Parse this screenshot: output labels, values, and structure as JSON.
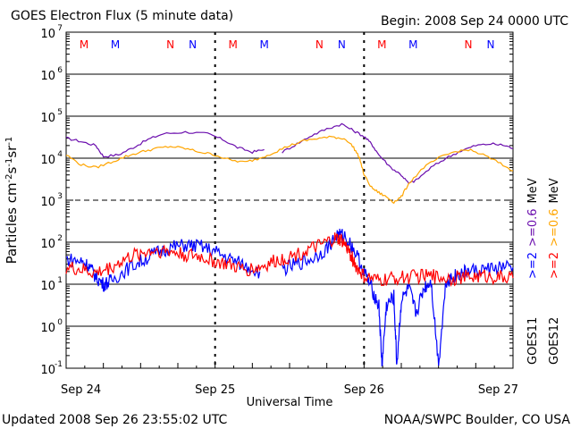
{
  "header": {
    "title": "GOES Electron Flux (5 minute data)",
    "begin": "Begin: 2008 Sep 24 0000 UTC"
  },
  "footer": {
    "updated": "Updated 2008 Sep 26 23:55:02 UTC",
    "credit": "NOAA/SWPC Boulder, CO USA"
  },
  "colors": {
    "goes11_06": "#6a0dad",
    "goes12_06": "#ffa500",
    "goes11_2": "#0000ff",
    "goes12_2": "#ff0000",
    "marker_m": "#ff0000",
    "marker_n": "#0000ff"
  },
  "chart_data": {
    "type": "line",
    "title": "GOES Electron Flux (5 minute data)",
    "xlabel": "Universal Time",
    "ylabel": "Particles cm^-2 s^-1 sr^-1",
    "y_scale": "log",
    "ylim": [
      0.1,
      10000000
    ],
    "xlim_days": [
      0,
      3
    ],
    "x_ticks": [
      "Sep 24",
      "Sep 25",
      "Sep 26",
      "Sep 27"
    ],
    "y_ticks": [
      {
        "base": "10",
        "exp": "-1"
      },
      {
        "base": "10",
        "exp": "0"
      },
      {
        "base": "10",
        "exp": "1"
      },
      {
        "base": "10",
        "exp": "2"
      },
      {
        "base": "10",
        "exp": "3"
      },
      {
        "base": "10",
        "exp": "4"
      },
      {
        "base": "10",
        "exp": "5"
      },
      {
        "base": "10",
        "exp": "6"
      },
      {
        "base": "10",
        "exp": "7"
      }
    ],
    "threshold_line": 1000,
    "right_labels": [
      {
        "text": ">=2",
        "color": "#0000ff"
      },
      {
        "text": ">=0.6",
        "color": "#6a0dad"
      },
      {
        "text": "MeV",
        "color": "#000000"
      },
      {
        "text": ">=2",
        "color": "#ff0000"
      },
      {
        "text": ">=0.6",
        "color": "#ffa500"
      },
      {
        "text": "MeV",
        "color": "#000000"
      },
      {
        "text": "GOES11",
        "color": "#000000"
      },
      {
        "text": "GOES12",
        "color": "#000000"
      }
    ],
    "markers": [
      {
        "label": "M",
        "color": "#ff0000",
        "x": 0.12
      },
      {
        "label": "M",
        "color": "#0000ff",
        "x": 0.33
      },
      {
        "label": "N",
        "color": "#ff0000",
        "x": 0.7
      },
      {
        "label": "N",
        "color": "#0000ff",
        "x": 0.85
      },
      {
        "label": "M",
        "color": "#ff0000",
        "x": 1.12
      },
      {
        "label": "M",
        "color": "#0000ff",
        "x": 1.33
      },
      {
        "label": "N",
        "color": "#ff0000",
        "x": 1.7
      },
      {
        "label": "N",
        "color": "#0000ff",
        "x": 1.85
      },
      {
        "label": "M",
        "color": "#ff0000",
        "x": 2.12
      },
      {
        "label": "M",
        "color": "#0000ff",
        "x": 2.33
      },
      {
        "label": "N",
        "color": "#ff0000",
        "x": 2.7
      },
      {
        "label": "N",
        "color": "#0000ff",
        "x": 2.85
      }
    ],
    "series": [
      {
        "color": "#6a0dad",
        "points": [
          [
            0,
            30000
          ],
          [
            0.1,
            25000
          ],
          [
            0.2,
            20000
          ],
          [
            0.25,
            11000
          ],
          [
            0.35,
            12000
          ],
          [
            0.45,
            18000
          ],
          [
            0.55,
            28000
          ],
          [
            0.65,
            38000
          ],
          [
            0.8,
            42000
          ],
          [
            0.95,
            38000
          ],
          [
            1.05,
            28000
          ],
          [
            1.15,
            18000
          ],
          [
            1.25,
            14000
          ],
          [
            1.33,
            16000
          ]
        ]
      },
      {
        "color": "#6a0dad",
        "points": [
          [
            1.45,
            14000
          ],
          [
            1.55,
            22000
          ],
          [
            1.65,
            35000
          ],
          [
            1.75,
            50000
          ],
          [
            1.85,
            65000
          ],
          [
            1.93,
            45000
          ],
          [
            2.0,
            33000
          ],
          [
            2.05,
            22000
          ],
          [
            2.1,
            12000
          ],
          [
            2.18,
            6000
          ],
          [
            2.25,
            4000
          ],
          [
            2.3,
            2500
          ],
          [
            2.35,
            3000
          ],
          [
            2.45,
            6000
          ],
          [
            2.55,
            10000
          ],
          [
            2.65,
            15000
          ],
          [
            2.75,
            20000
          ],
          [
            2.85,
            22000
          ],
          [
            2.95,
            20000
          ],
          [
            3.0,
            17000
          ]
        ]
      },
      {
        "color": "#ffa500",
        "points": [
          [
            0,
            12000
          ],
          [
            0.1,
            7000
          ],
          [
            0.2,
            6000
          ],
          [
            0.3,
            8000
          ],
          [
            0.4,
            11000
          ],
          [
            0.5,
            14000
          ],
          [
            0.6,
            17000
          ],
          [
            0.7,
            19000
          ],
          [
            0.8,
            17000
          ],
          [
            0.9,
            14000
          ],
          [
            1.0,
            12000
          ],
          [
            1.1,
            9000
          ],
          [
            1.2,
            8000
          ],
          [
            1.3,
            10000
          ],
          [
            1.4,
            14000
          ],
          [
            1.5,
            20000
          ],
          [
            1.6,
            26000
          ],
          [
            1.7,
            30000
          ],
          [
            1.8,
            32000
          ],
          [
            1.88,
            28000
          ],
          [
            1.93,
            18000
          ],
          [
            1.97,
            10000
          ],
          [
            2.0,
            4000
          ],
          [
            2.05,
            2000
          ],
          [
            2.1,
            1500
          ],
          [
            2.15,
            1200
          ],
          [
            2.2,
            900
          ],
          [
            2.25,
            1200
          ],
          [
            2.3,
            2500
          ],
          [
            2.4,
            6000
          ],
          [
            2.5,
            10000
          ],
          [
            2.6,
            14000
          ],
          [
            2.7,
            16000
          ],
          [
            2.8,
            12000
          ],
          [
            2.9,
            8000
          ],
          [
            3.0,
            5000
          ]
        ]
      },
      {
        "color": "#0000ff",
        "points": [
          [
            0,
            40
          ],
          [
            0.1,
            35
          ],
          [
            0.15,
            28
          ],
          [
            0.2,
            15
          ],
          [
            0.25,
            10
          ],
          [
            0.3,
            12
          ],
          [
            0.4,
            22
          ],
          [
            0.5,
            35
          ],
          [
            0.6,
            55
          ],
          [
            0.7,
            75
          ],
          [
            0.8,
            85
          ],
          [
            0.9,
            80
          ],
          [
            1.0,
            60
          ],
          [
            1.1,
            40
          ],
          [
            1.2,
            28
          ],
          [
            1.3,
            20
          ]
        ]
      },
      {
        "color": "#0000ff",
        "points": [
          [
            1.45,
            22
          ],
          [
            1.55,
            30
          ],
          [
            1.65,
            40
          ],
          [
            1.75,
            70
          ],
          [
            1.82,
            150
          ],
          [
            1.87,
            140
          ],
          [
            1.93,
            70
          ],
          [
            2.0,
            20
          ],
          [
            2.05,
            8
          ],
          [
            2.1,
            3
          ],
          [
            2.12,
            0.12
          ],
          [
            2.15,
            3
          ],
          [
            2.2,
            5
          ],
          [
            2.22,
            0.12
          ],
          [
            2.25,
            4
          ],
          [
            2.3,
            8
          ],
          [
            2.35,
            2
          ],
          [
            2.4,
            8
          ],
          [
            2.45,
            12
          ],
          [
            2.5,
            0.12
          ],
          [
            2.55,
            12
          ],
          [
            2.6,
            15
          ],
          [
            2.65,
            18
          ],
          [
            2.7,
            20
          ],
          [
            2.8,
            22
          ],
          [
            2.9,
            25
          ],
          [
            3.0,
            25
          ]
        ]
      },
      {
        "color": "#ff0000",
        "points": [
          [
            0,
            25
          ],
          [
            0.1,
            22
          ],
          [
            0.2,
            18
          ],
          [
            0.3,
            25
          ],
          [
            0.4,
            40
          ],
          [
            0.5,
            55
          ],
          [
            0.6,
            65
          ],
          [
            0.7,
            60
          ],
          [
            0.8,
            50
          ],
          [
            0.9,
            45
          ],
          [
            1.0,
            35
          ],
          [
            1.1,
            28
          ],
          [
            1.2,
            22
          ],
          [
            1.3,
            25
          ],
          [
            1.4,
            35
          ],
          [
            1.5,
            45
          ],
          [
            1.6,
            60
          ],
          [
            1.7,
            80
          ],
          [
            1.8,
            120
          ],
          [
            1.85,
            110
          ],
          [
            1.9,
            60
          ],
          [
            1.95,
            25
          ],
          [
            2.0,
            15
          ],
          [
            2.1,
            12
          ],
          [
            2.2,
            14
          ],
          [
            2.3,
            15
          ],
          [
            2.4,
            16
          ],
          [
            2.5,
            15
          ],
          [
            2.6,
            14
          ],
          [
            2.7,
            15
          ],
          [
            2.8,
            16
          ],
          [
            2.9,
            15
          ],
          [
            3.0,
            14
          ]
        ]
      }
    ]
  }
}
